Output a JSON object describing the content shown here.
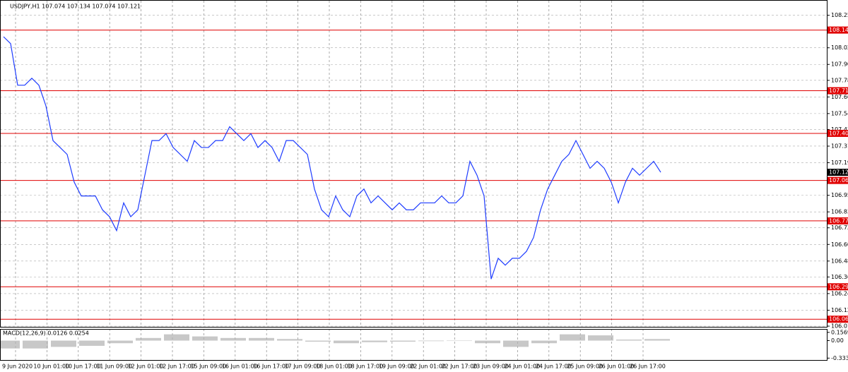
{
  "header": {
    "text": "USDJPY,H1 107.074 107.134 107.074 107.121"
  },
  "chart_data": [
    {
      "type": "line",
      "xticks": [
        "9 Jun 2020",
        "10 Jun 01:00",
        "10 Jun 17:00",
        "11 Jun 09:00",
        "12 Jun 01:00",
        "12 Jun 17:00",
        "15 Jun 09:00",
        "16 Jun 01:00",
        "16 Jun 17:00",
        "17 Jun 09:00",
        "18 Jun 01:00",
        "18 Jun 17:00",
        "19 Jun 09:00",
        "22 Jun 01:00",
        "22 Jun 17:00",
        "23 Jun 09:00",
        "24 Jun 01:00",
        "24 Jun 17:00",
        "25 Jun 09:00",
        "26 Jun 01:00",
        "26 Jun 17:00"
      ],
      "series": [
        {
          "color": "#1e3cff",
          "values": [
            108.1,
            108.05,
            107.75,
            107.75,
            107.8,
            107.75,
            107.6,
            107.35,
            107.3,
            107.25,
            107.05,
            106.95,
            106.95,
            106.95,
            106.85,
            106.8,
            106.7,
            106.9,
            106.8,
            106.85,
            107.1,
            107.35,
            107.35,
            107.4,
            107.3,
            107.25,
            107.2,
            107.35,
            107.3,
            107.3,
            107.35,
            107.35,
            107.45,
            107.4,
            107.35,
            107.4,
            107.3,
            107.35,
            107.3,
            107.2,
            107.35,
            107.35,
            107.3,
            107.25,
            107.0,
            106.85,
            106.8,
            106.95,
            106.85,
            106.8,
            106.95,
            107.0,
            106.9,
            106.95,
            106.9,
            106.85,
            106.9,
            106.85,
            106.85,
            106.9,
            106.9,
            106.9,
            106.95,
            106.9,
            106.9,
            106.95,
            107.2,
            107.1,
            106.95,
            106.35,
            106.5,
            106.45,
            106.5,
            106.5,
            106.55,
            106.65,
            106.85,
            107.0,
            107.1,
            107.2,
            107.25,
            107.35,
            107.25,
            107.15,
            107.2,
            107.15,
            107.05,
            106.9,
            107.05,
            107.15,
            107.1,
            107.15,
            107.2,
            107.121
          ]
        }
      ],
      "ylim": [
        106.005,
        108.36
      ],
      "yticks": [
        108.255,
        {
          "value": 108.02,
          "label": "108.020"
        },
        {
          "value": 107.9,
          "label": "107.900"
        },
        107.785,
        107.665,
        107.545,
        {
          "value": 107.43,
          "label": "107.430"
        },
        {
          "value": 107.31,
          "label": "107.310"
        },
        {
          "value": 107.19,
          "label": "107.190"
        },
        106.955,
        106.835,
        {
          "value": 106.72,
          "label": "106.720"
        },
        {
          "value": 106.6,
          "label": "106.600"
        },
        {
          "value": 106.48,
          "label": "106.480"
        },
        106.365,
        106.245,
        106.125,
        {
          "value": 106.01,
          "label": "106.010"
        }
      ],
      "levels": [
        108.148,
        {
          "value": 107.71,
          "label": "107.710"
        },
        107.402,
        107.062,
        {
          "value": 106.77,
          "label": "106.770"
        },
        106.294,
        {
          "value": 106.06,
          "label": "106.060"
        }
      ],
      "level_color": "#e00000",
      "current_price": 107.121,
      "grid": true
    },
    {
      "type": "bar",
      "title": "MACD(12,26,9) 0.0126 0.0254",
      "color": "#b0b0b0",
      "values": [
        -0.15,
        -0.15,
        -0.12,
        -0.1,
        -0.05,
        0.05,
        0.12,
        0.08,
        0.05,
        0.05,
        0.03,
        -0.02,
        -0.05,
        -0.03,
        -0.02,
        -0.01,
        0.0,
        -0.05,
        -0.12,
        -0.05,
        0.12,
        0.1,
        0.02,
        0.03
      ],
      "ylim": [
        -0.37,
        0.209
      ],
      "yticks": [
        0.1569,
        {
          "value": 0,
          "label": "0.00"
        },
        -0.3339
      ]
    }
  ]
}
